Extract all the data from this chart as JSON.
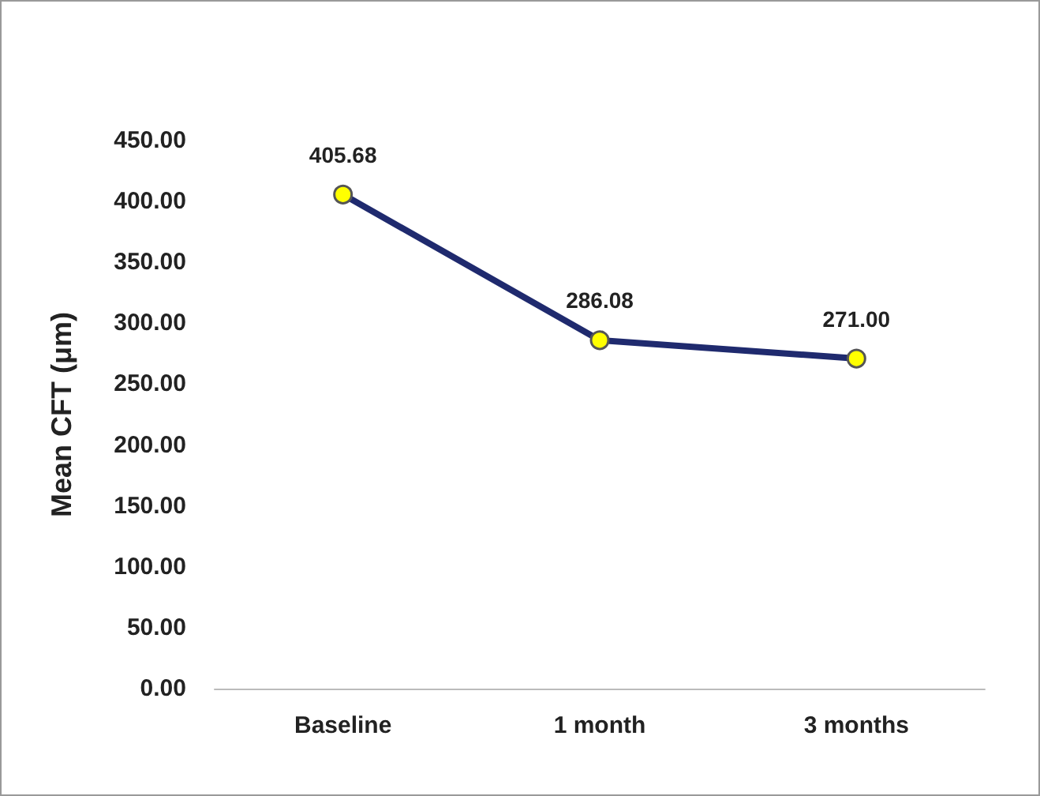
{
  "chart_data": {
    "type": "line",
    "ylabel": "Mean CFT (μm)",
    "categories": [
      "Baseline",
      "1 month",
      "3 months"
    ],
    "series": [
      {
        "color": "#1f2a6e",
        "values": [
          405.68,
          286.08,
          271.0
        ],
        "value_labels": [
          "405.68",
          "286.08",
          "271.00"
        ]
      }
    ],
    "ylim": [
      0,
      450
    ],
    "yticks": [
      {
        "value": 0,
        "label": "0.00"
      },
      {
        "value": 50,
        "label": "50.00"
      },
      {
        "value": 100,
        "label": "100.00"
      },
      {
        "value": 150,
        "label": "150.00"
      },
      {
        "value": 200,
        "label": "200.00"
      },
      {
        "value": 250,
        "label": "250.00"
      },
      {
        "value": 300,
        "label": "300.00"
      },
      {
        "value": 350,
        "label": "350.00"
      },
      {
        "value": 400,
        "label": "400.00"
      },
      {
        "value": 450,
        "label": "450.00"
      }
    ],
    "grid": false,
    "marker": "circle",
    "line_style": "solid"
  }
}
